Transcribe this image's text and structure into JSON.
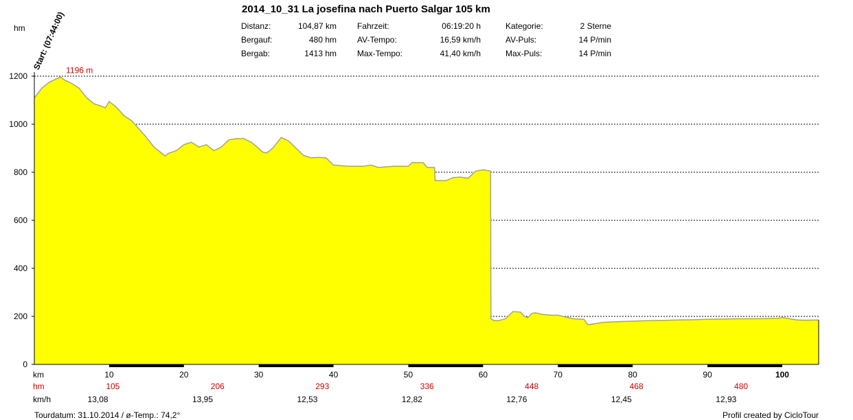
{
  "header": {
    "title": "2014_10_31 La josefina nach Puerto Salgar 105 km",
    "stats": [
      {
        "label": "Distanz:",
        "value": "104,87 km"
      },
      {
        "label": "Bergauf:",
        "value": "480 hm"
      },
      {
        "label": "Bergab:",
        "value": "1413 hm"
      },
      {
        "label": "Fahrzeit:",
        "value": "06:19:20 h"
      },
      {
        "label": "AV-Tempo:",
        "value": "16,59 km/h"
      },
      {
        "label": "Max-Tempo:",
        "value": "41,40 km/h"
      },
      {
        "label": "Kategorie:",
        "value": "2 Sterne"
      },
      {
        "label": "AV-Puls:",
        "value": "14 P/min"
      },
      {
        "label": "Max-Puls:",
        "value": "14 P/min"
      }
    ],
    "y_unit": "hm",
    "start_label": "Start: (07:44:00)"
  },
  "chart_data": {
    "type": "area",
    "ylim": [
      0,
      1200
    ],
    "xlim": [
      0,
      104.87
    ],
    "yticks": [
      0,
      200,
      400,
      600,
      800,
      1000,
      1200
    ],
    "xticks": [
      10,
      20,
      30,
      40,
      50,
      60,
      70,
      80,
      90,
      100
    ],
    "grid": true,
    "fill_color": "#ffff00",
    "line_color": "#a0a0a0",
    "max_label": "1196 m",
    "max_point": {
      "x": 3.5,
      "y": 1196
    },
    "series": [
      {
        "x": [
          0,
          1,
          2,
          3,
          3.5,
          4,
          5,
          6,
          7,
          8,
          8.5,
          9,
          9.5,
          10,
          11,
          12,
          13,
          14,
          15,
          16,
          17,
          17.5,
          18,
          19,
          20,
          20.5,
          21,
          22,
          23,
          24,
          25,
          26,
          27,
          28,
          29,
          30,
          30.5,
          31,
          31.5,
          32,
          33,
          34,
          35,
          36,
          37,
          38,
          39,
          40,
          42,
          44,
          45,
          46,
          48,
          50,
          50.5,
          52,
          52.5,
          53.5,
          53.6,
          55,
          56,
          57,
          58,
          59,
          60,
          61,
          61.05,
          61.5,
          62,
          63,
          64,
          65,
          65.5,
          66,
          66.5,
          67,
          68,
          69,
          70,
          72,
          73.5,
          74,
          76,
          78,
          80,
          82,
          84,
          86,
          88,
          90,
          92,
          94,
          96,
          98,
          99.5,
          100,
          101,
          102,
          103,
          104.87
        ],
        "y": [
          1110,
          1150,
          1175,
          1190,
          1196,
          1185,
          1170,
          1150,
          1110,
          1085,
          1080,
          1075,
          1068,
          1095,
          1070,
          1035,
          1015,
          980,
          945,
          905,
          880,
          868,
          880,
          890,
          915,
          920,
          925,
          905,
          915,
          890,
          905,
          935,
          940,
          940,
          925,
          900,
          885,
          880,
          890,
          905,
          945,
          930,
          900,
          870,
          860,
          862,
          860,
          830,
          825,
          825,
          830,
          820,
          825,
          825,
          840,
          840,
          820,
          820,
          765,
          765,
          778,
          780,
          775,
          805,
          810,
          805,
          190,
          182,
          182,
          190,
          220,
          218,
          200,
          195,
          212,
          215,
          208,
          205,
          205,
          190,
          188,
          165,
          175,
          178,
          180,
          182,
          183,
          185,
          186,
          188,
          189,
          190,
          190,
          191,
          192,
          195,
          190,
          185,
          184,
          185
        ]
      }
    ],
    "ticks": [
      {
        "km": "km",
        "hm": "hm",
        "kmh": "km/h"
      },
      {
        "km": "10",
        "hm": "105",
        "kmh": "13,08"
      },
      {
        "km": "20",
        "hm": "206",
        "kmh": "13,95"
      },
      {
        "km": "30",
        "hm": "293",
        "kmh": "12,53"
      },
      {
        "km": "40",
        "hm": "336",
        "kmh": "12,82"
      },
      {
        "km": "50",
        "hm": "448",
        "kmh": "12,76"
      },
      {
        "km": "60",
        "hm": "468",
        "kmh": "12,45"
      },
      {
        "km": "70",
        "hm": "480",
        "kmh": "12,93"
      },
      {
        "km": "80"
      },
      {
        "km": "90"
      },
      {
        "km": "100"
      }
    ],
    "row_labels": {
      "km": "km",
      "hm": "hm",
      "kmh": "km/h"
    },
    "km_labels": [
      "10",
      "20",
      "30",
      "40",
      "50",
      "60",
      "70",
      "80",
      "90",
      "100"
    ],
    "hm_values": [
      "105",
      "206",
      "293",
      "336",
      "448",
      "468",
      "480"
    ],
    "kmh_values": [
      "13,08",
      "13,95",
      "12,53",
      "12,82",
      "12,76",
      "12,45",
      "12,93"
    ]
  },
  "footer": {
    "left": "Tourdatum: 31.10.2014  /  ø-Temp.: 74,2°",
    "right": "Profil created by CicloTour"
  },
  "colors": {
    "red": "#cc0000",
    "fill": "#ffff00",
    "profile_line": "#a0a0a0"
  }
}
